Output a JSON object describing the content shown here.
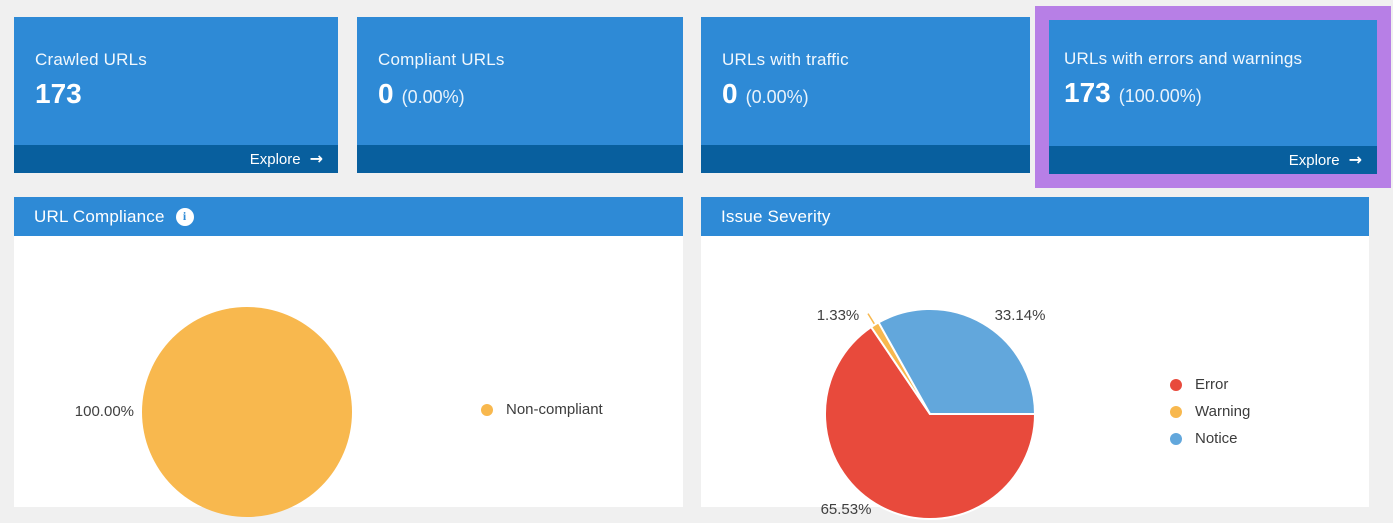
{
  "colors": {
    "page_bg": "#f0f0f0",
    "card_bg": "#2e8ad6",
    "card_footer_bg": "#085f9e",
    "panel_header_bg": "#2e8ad6",
    "highlight_border": "#b77fe6",
    "error": "#e84a3c",
    "warning": "#f8b84e",
    "notice": "#62a7dc",
    "non_compliant": "#f8b84e",
    "chart_label_text": "#404040"
  },
  "cards": [
    {
      "title": "Crawled URLs",
      "value": "173",
      "percent": "",
      "explore_label": "Explore"
    },
    {
      "title": "Compliant URLs",
      "value": "0",
      "percent": "(0.00%)"
    },
    {
      "title": "URLs with traffic",
      "value": "0",
      "percent": "(0.00%)"
    },
    {
      "title": "URLs with errors and warnings",
      "value": "173",
      "percent": "(100.00%)",
      "explore_label": "Explore",
      "highlighted": true
    }
  ],
  "panels": {
    "compliance": {
      "title": "URL Compliance",
      "info_icon": "i",
      "legend": [
        {
          "label": "Non-compliant",
          "color": "#f8b84e"
        }
      ]
    },
    "severity": {
      "title": "Issue Severity",
      "legend": [
        {
          "label": "Error",
          "color": "#e84a3c"
        },
        {
          "label": "Warning",
          "color": "#f8b84e"
        },
        {
          "label": "Notice",
          "color": "#62a7dc"
        }
      ]
    }
  },
  "chart_data": [
    {
      "type": "pie",
      "title": "URL Compliance",
      "start_angle_deg": 0,
      "direction": "clockwise",
      "legend_position": "right",
      "slices": [
        {
          "name": "Non-compliant",
          "value": 100.0,
          "label": "100.00%",
          "color": "#f8b84e"
        }
      ]
    },
    {
      "type": "pie",
      "title": "Issue Severity",
      "start_angle_deg": 0,
      "direction": "clockwise",
      "legend_position": "right",
      "slices": [
        {
          "name": "Error",
          "value": 65.53,
          "label": "65.53%",
          "color": "#e84a3c"
        },
        {
          "name": "Warning",
          "value": 1.33,
          "label": "1.33%",
          "color": "#f8b84e"
        },
        {
          "name": "Notice",
          "value": 33.14,
          "label": "33.14%",
          "color": "#62a7dc"
        }
      ]
    }
  ]
}
